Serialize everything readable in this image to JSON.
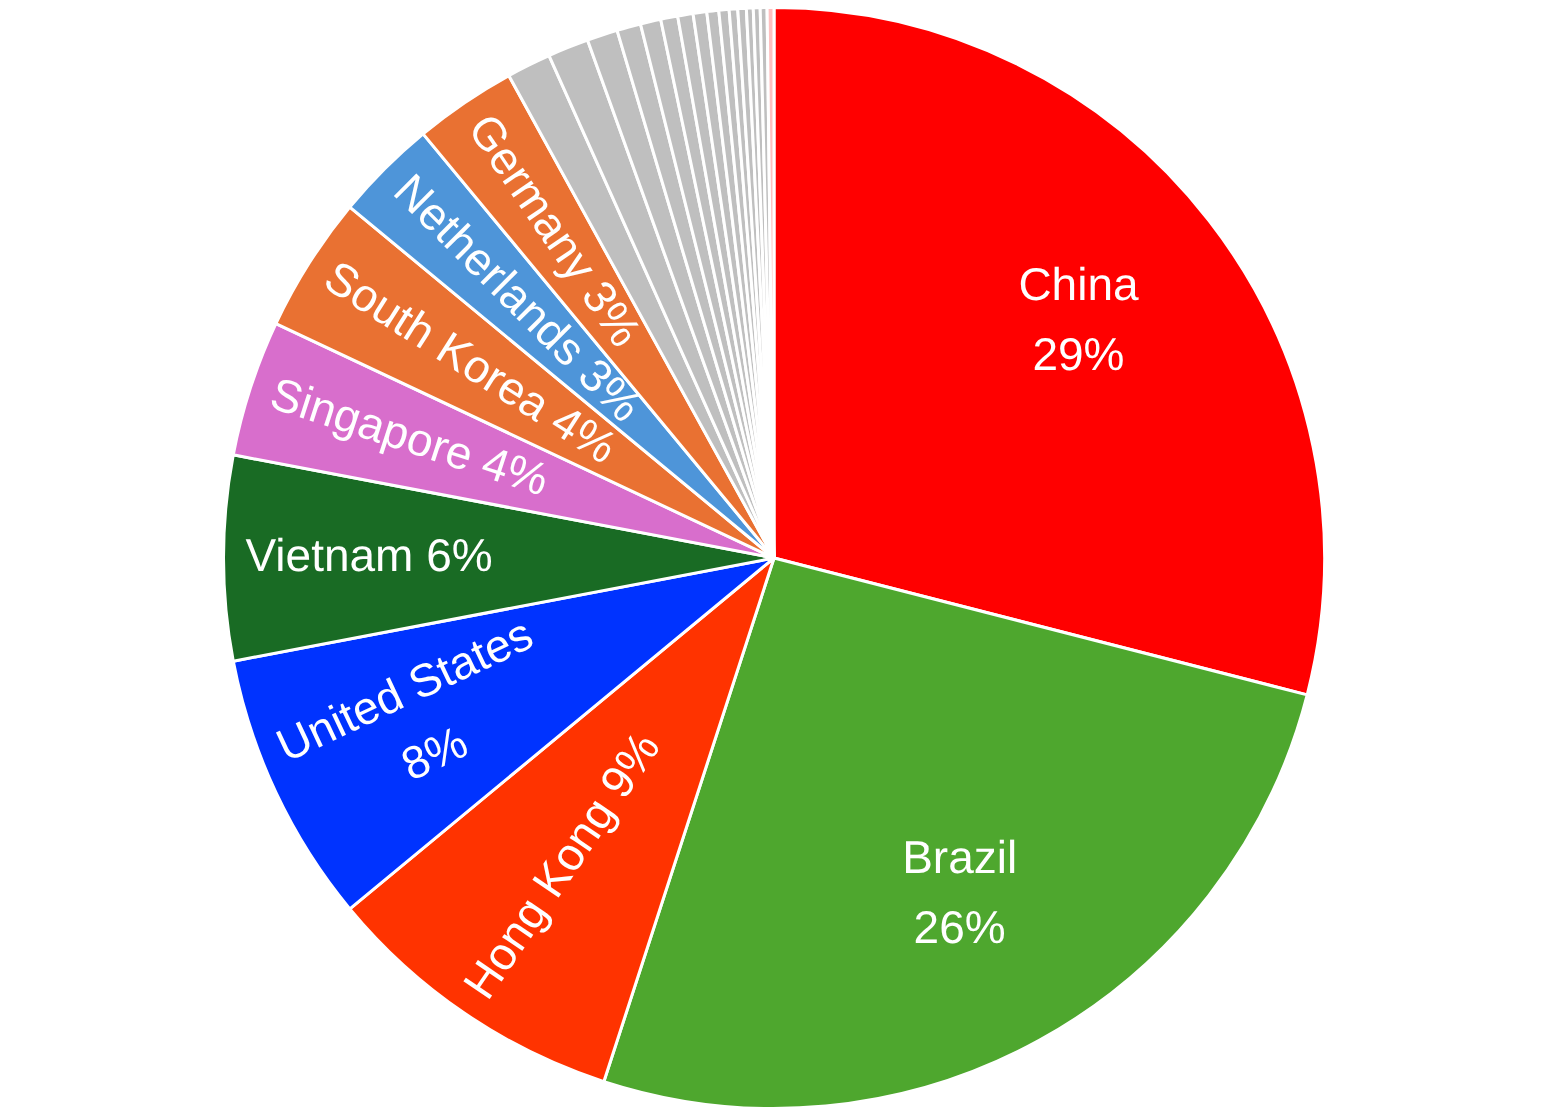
{
  "chart_data": {
    "type": "pie",
    "categories": [
      "China",
      "Brazil",
      "Hong Kong",
      "United States",
      "Vietnam",
      "Singapore",
      "South Korea",
      "Netherlands",
      "Germany",
      null,
      null,
      null,
      null,
      null,
      null,
      null,
      null,
      null,
      null,
      null,
      null,
      null,
      null,
      null,
      null
    ],
    "values": [
      29,
      26,
      9,
      8,
      6,
      4,
      4,
      3,
      3,
      1.3,
      1.2,
      0.9,
      0.7,
      0.6,
      0.5,
      0.45,
      0.4,
      0.35,
      0.3,
      0.25,
      0.25,
      0.2,
      0.2,
      0.2,
      0.2
    ],
    "value_labels": [
      "29%",
      "26%",
      "9%",
      "8%",
      "6%",
      "4%",
      "4%",
      "3%",
      "3%",
      null,
      null,
      null,
      null,
      null,
      null,
      null,
      null,
      null,
      null,
      null,
      null,
      null,
      null,
      null,
      null
    ],
    "colors": [
      "#ff0000",
      "#4ea72e",
      "#ff3300",
      "#0033ff",
      "#196b24",
      "#d86ecc",
      "#e97132",
      "#4e95d9",
      "#e97132",
      "#bfbfbf",
      "#bfbfbf",
      "#bfbfbf",
      "#bfbfbf",
      "#bfbfbf",
      "#bfbfbf",
      "#bfbfbf",
      "#bfbfbf",
      "#bfbfbf",
      "#bfbfbf",
      "#bfbfbf",
      "#bfbfbf",
      "#bfbfbf",
      "#bfbfbf",
      "#bfbfbf",
      "#ffc0c0"
    ]
  }
}
